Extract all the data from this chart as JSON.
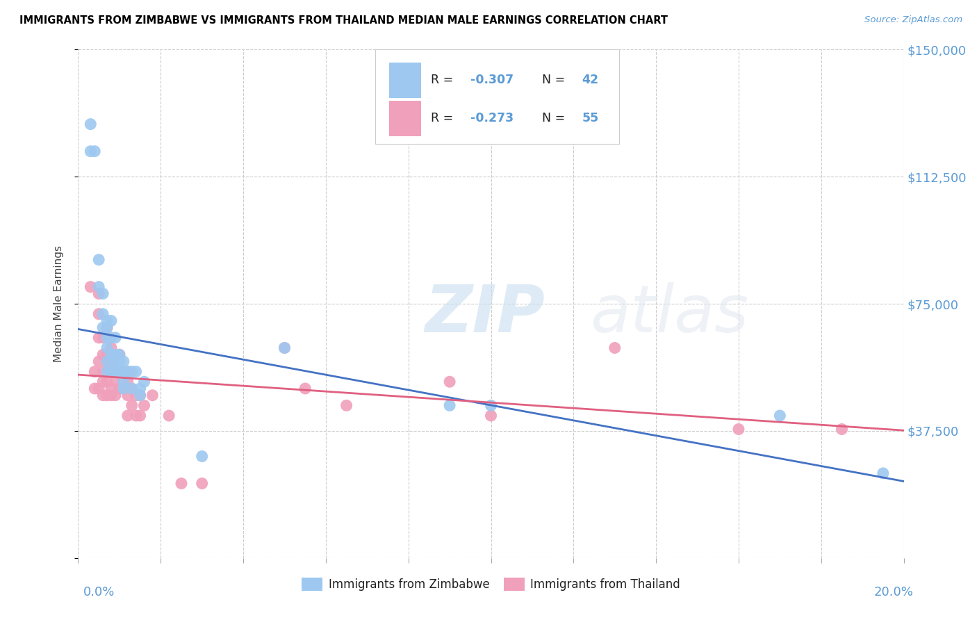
{
  "title": "IMMIGRANTS FROM ZIMBABWE VS IMMIGRANTS FROM THAILAND MEDIAN MALE EARNINGS CORRELATION CHART",
  "source": "Source: ZipAtlas.com",
  "ylabel": "Median Male Earnings",
  "yticks": [
    0,
    37500,
    75000,
    112500,
    150000
  ],
  "ytick_labels": [
    "",
    "$37,500",
    "$75,000",
    "$112,500",
    "$150,000"
  ],
  "xmin": 0.0,
  "xmax": 0.2,
  "ymin": 0,
  "ymax": 150000,
  "watermark_zip": "ZIP",
  "watermark_atlas": "atlas",
  "legend_R1": "-0.307",
  "legend_N1": "42",
  "legend_R2": "-0.273",
  "legend_N2": "55",
  "color_zimbabwe": "#9ec8f0",
  "color_thailand": "#f0a0bb",
  "color_line_zimbabwe": "#4472c4",
  "color_line_thailand": "#e06080",
  "color_axis_label": "#5b9bd5",
  "color_title": "#000000",
  "background_color": "#ffffff",
  "grid_color": "#cccccc",
  "zimbabwe_x": [
    0.003,
    0.003,
    0.004,
    0.005,
    0.005,
    0.006,
    0.006,
    0.006,
    0.007,
    0.007,
    0.007,
    0.007,
    0.007,
    0.007,
    0.008,
    0.008,
    0.008,
    0.008,
    0.009,
    0.009,
    0.009,
    0.009,
    0.01,
    0.01,
    0.01,
    0.011,
    0.011,
    0.011,
    0.011,
    0.012,
    0.013,
    0.013,
    0.014,
    0.015,
    0.015,
    0.016,
    0.03,
    0.05,
    0.09,
    0.1,
    0.17,
    0.195
  ],
  "zimbabwe_y": [
    128000,
    120000,
    120000,
    88000,
    80000,
    78000,
    72000,
    68000,
    70000,
    68000,
    65000,
    62000,
    58000,
    55000,
    70000,
    65000,
    60000,
    55000,
    65000,
    60000,
    58000,
    55000,
    60000,
    58000,
    55000,
    58000,
    55000,
    52000,
    50000,
    55000,
    55000,
    50000,
    55000,
    50000,
    48000,
    52000,
    30000,
    62000,
    45000,
    45000,
    42000,
    25000
  ],
  "thailand_x": [
    0.003,
    0.004,
    0.004,
    0.005,
    0.005,
    0.005,
    0.005,
    0.005,
    0.006,
    0.006,
    0.006,
    0.006,
    0.006,
    0.007,
    0.007,
    0.007,
    0.007,
    0.007,
    0.007,
    0.008,
    0.008,
    0.008,
    0.008,
    0.008,
    0.009,
    0.009,
    0.009,
    0.01,
    0.01,
    0.01,
    0.011,
    0.011,
    0.012,
    0.012,
    0.012,
    0.012,
    0.013,
    0.013,
    0.014,
    0.014,
    0.015,
    0.015,
    0.016,
    0.018,
    0.022,
    0.025,
    0.03,
    0.05,
    0.055,
    0.065,
    0.09,
    0.1,
    0.13,
    0.16,
    0.185
  ],
  "thailand_y": [
    80000,
    55000,
    50000,
    78000,
    72000,
    65000,
    58000,
    50000,
    65000,
    60000,
    55000,
    52000,
    48000,
    68000,
    60000,
    58000,
    55000,
    52000,
    48000,
    62000,
    58000,
    55000,
    50000,
    48000,
    55000,
    52000,
    48000,
    60000,
    55000,
    50000,
    55000,
    50000,
    55000,
    52000,
    48000,
    42000,
    50000,
    45000,
    48000,
    42000,
    48000,
    42000,
    45000,
    48000,
    42000,
    22000,
    22000,
    62000,
    50000,
    45000,
    52000,
    42000,
    62000,
    38000,
    38000
  ]
}
